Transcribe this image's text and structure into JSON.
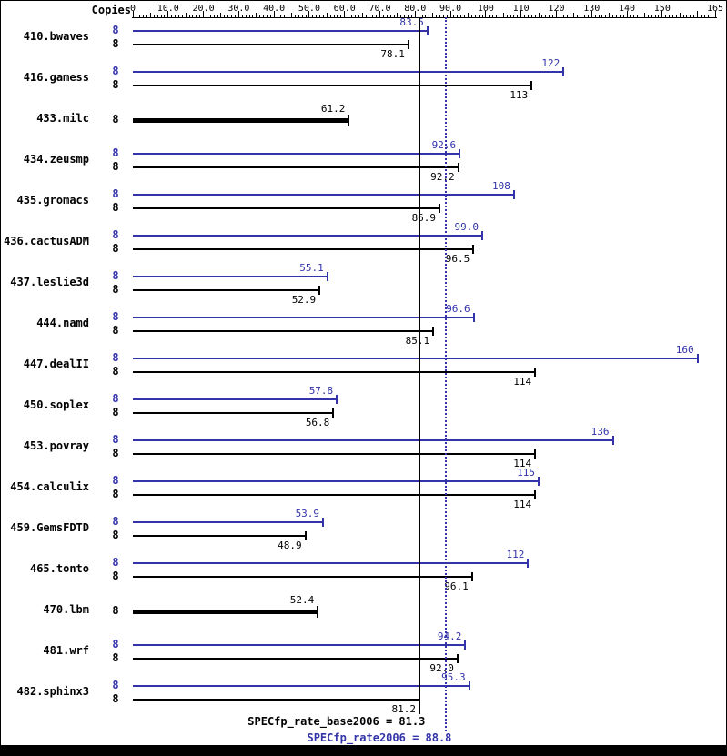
{
  "header": {
    "copies_label": "Copies"
  },
  "summary": {
    "base_label": "SPECfp_rate_base2006 = 81.3",
    "peak_label": "SPECfp_rate2006 = 88.8"
  },
  "colors": {
    "peak": "#3333aa",
    "base": "#000000"
  },
  "chart_data": {
    "type": "bar",
    "orientation": "horizontal",
    "xlim": [
      0,
      165
    ],
    "axis": {
      "tick_values": [
        0,
        10,
        20,
        30,
        40,
        50,
        60,
        70,
        80,
        90,
        100,
        110,
        120,
        130,
        140,
        150,
        165
      ],
      "tick_labels": [
        "0",
        "10.0",
        "20.0",
        "30.0",
        "40.0",
        "50.0",
        "60.0",
        "70.0",
        "80.0",
        "90.0",
        "100",
        "110",
        "120",
        "130",
        "140",
        "150",
        "165"
      ]
    },
    "benchmarks": [
      {
        "name": "410.bwaves",
        "copies": 8,
        "peak": 83.5,
        "peak_label": "83.5",
        "base": 78.1,
        "base_label": "78.1"
      },
      {
        "name": "416.gamess",
        "copies": 8,
        "peak": 122,
        "peak_label": "122",
        "base": 113,
        "base_label": "113"
      },
      {
        "name": "433.milc",
        "copies": 8,
        "base_only": true,
        "base": 61.2,
        "base_label": "61.2"
      },
      {
        "name": "434.zeusmp",
        "copies": 8,
        "peak": 92.6,
        "peak_label": "92.6",
        "base": 92.2,
        "base_label": "92.2"
      },
      {
        "name": "435.gromacs",
        "copies": 8,
        "peak": 108,
        "peak_label": "108",
        "base": 86.9,
        "base_label": "86.9"
      },
      {
        "name": "436.cactusADM",
        "copies": 8,
        "peak": 99.0,
        "peak_label": "99.0",
        "base": 96.5,
        "base_label": "96.5"
      },
      {
        "name": "437.leslie3d",
        "copies": 8,
        "peak": 55.1,
        "peak_label": "55.1",
        "base": 52.9,
        "base_label": "52.9"
      },
      {
        "name": "444.namd",
        "copies": 8,
        "peak": 96.6,
        "peak_label": "96.6",
        "base": 85.1,
        "base_label": "85.1"
      },
      {
        "name": "447.dealII",
        "copies": 8,
        "peak": 160,
        "peak_label": "160",
        "base": 114,
        "base_label": "114"
      },
      {
        "name": "450.soplex",
        "copies": 8,
        "peak": 57.8,
        "peak_label": "57.8",
        "base": 56.8,
        "base_label": "56.8"
      },
      {
        "name": "453.povray",
        "copies": 8,
        "peak": 136,
        "peak_label": "136",
        "base": 114,
        "base_label": "114"
      },
      {
        "name": "454.calculix",
        "copies": 8,
        "peak": 115,
        "peak_label": "115",
        "base": 114,
        "base_label": "114"
      },
      {
        "name": "459.GemsFDTD",
        "copies": 8,
        "peak": 53.9,
        "peak_label": "53.9",
        "base": 48.9,
        "base_label": "48.9"
      },
      {
        "name": "465.tonto",
        "copies": 8,
        "peak": 112,
        "peak_label": "112",
        "base": 96.1,
        "base_label": "96.1"
      },
      {
        "name": "470.lbm",
        "copies": 8,
        "base_only": true,
        "base": 52.4,
        "base_label": "52.4"
      },
      {
        "name": "481.wrf",
        "copies": 8,
        "peak": 94.2,
        "peak_label": "94.2",
        "base": 92.0,
        "base_label": "92.0"
      },
      {
        "name": "482.sphinx3",
        "copies": 8,
        "peak": 95.3,
        "peak_label": "95.3",
        "base": 81.2,
        "base_label": "81.2"
      }
    ],
    "reference_lines": [
      {
        "label": "SPECfp_rate_base2006",
        "value": 81.3,
        "style": "solid",
        "color": "#000000"
      },
      {
        "label": "SPECfp_rate2006",
        "value": 88.8,
        "style": "dotted",
        "color": "#3333aa"
      }
    ]
  }
}
